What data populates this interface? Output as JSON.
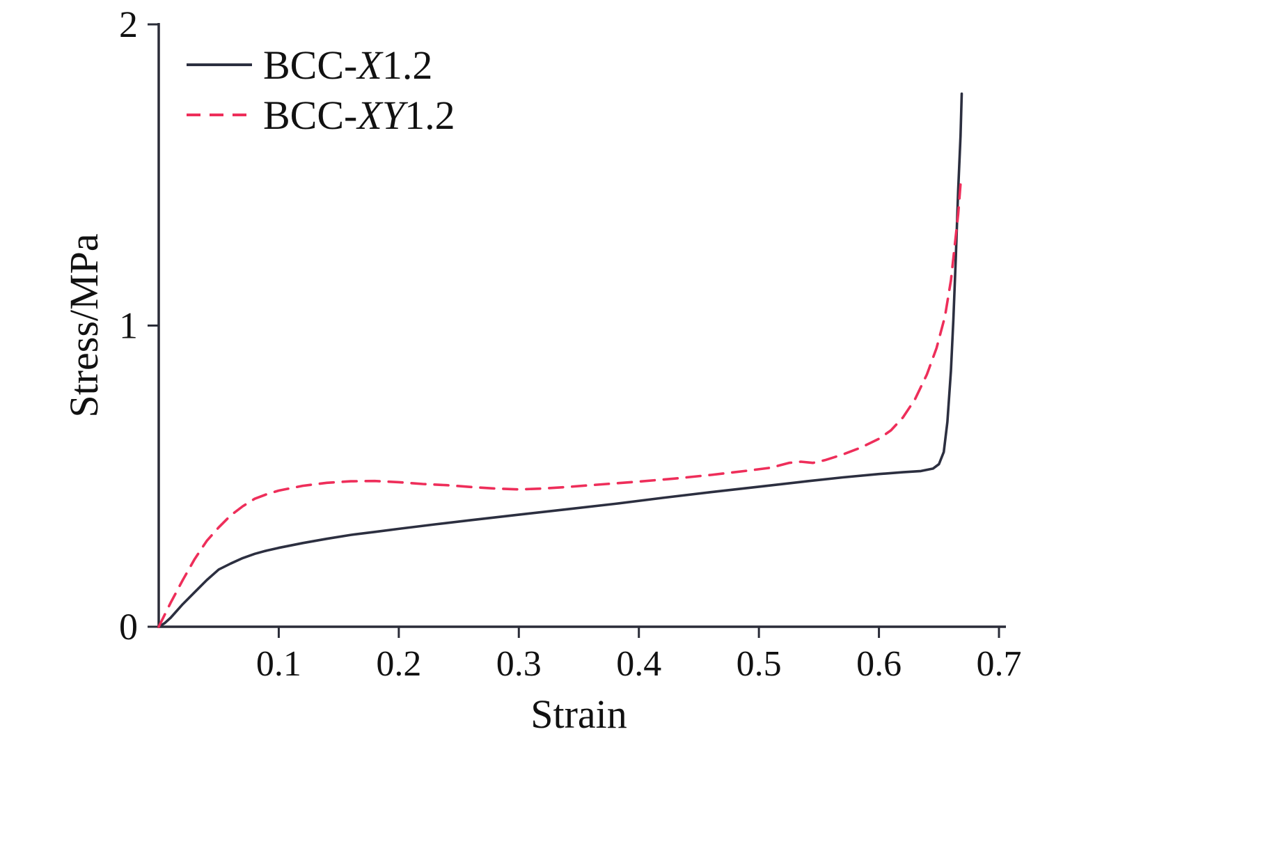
{
  "figure": {
    "kind": "stress-strain line chart",
    "background": "#ffffff"
  },
  "chart_data": {
    "type": "line",
    "title": "",
    "xlabel": "Strain",
    "ylabel": "Stress/MPa",
    "xlim": [
      0,
      0.7
    ],
    "ylim": [
      0,
      2
    ],
    "grid": false,
    "legend_position": "top-left",
    "axis_color": "#2a2c38",
    "text_color": "#111111",
    "x_ticks": [
      {
        "value": 0.1,
        "label": "0.1"
      },
      {
        "value": 0.2,
        "label": "0.2"
      },
      {
        "value": 0.3,
        "label": "0.3"
      },
      {
        "value": 0.4,
        "label": "0.4"
      },
      {
        "value": 0.5,
        "label": "0.5"
      },
      {
        "value": 0.6,
        "label": "0.6"
      },
      {
        "value": 0.7,
        "label": "0.7"
      }
    ],
    "y_ticks": [
      {
        "value": 0,
        "label": "0"
      },
      {
        "value": 1,
        "label": "1"
      },
      {
        "value": 2,
        "label": "2"
      }
    ],
    "series": [
      {
        "name": "BCC-X1.2",
        "color": "#2c2f40",
        "style": "solid",
        "points": [
          [
            0,
            0
          ],
          [
            0.005,
            0.012
          ],
          [
            0.01,
            0.03
          ],
          [
            0.02,
            0.075
          ],
          [
            0.03,
            0.115
          ],
          [
            0.04,
            0.155
          ],
          [
            0.05,
            0.19
          ],
          [
            0.06,
            0.21
          ],
          [
            0.07,
            0.228
          ],
          [
            0.08,
            0.242
          ],
          [
            0.09,
            0.253
          ],
          [
            0.1,
            0.262
          ],
          [
            0.12,
            0.278
          ],
          [
            0.14,
            0.292
          ],
          [
            0.16,
            0.305
          ],
          [
            0.18,
            0.315
          ],
          [
            0.2,
            0.325
          ],
          [
            0.23,
            0.34
          ],
          [
            0.26,
            0.354
          ],
          [
            0.3,
            0.372
          ],
          [
            0.34,
            0.39
          ],
          [
            0.38,
            0.408
          ],
          [
            0.42,
            0.428
          ],
          [
            0.46,
            0.447
          ],
          [
            0.5,
            0.465
          ],
          [
            0.54,
            0.483
          ],
          [
            0.57,
            0.496
          ],
          [
            0.6,
            0.507
          ],
          [
            0.62,
            0.513
          ],
          [
            0.635,
            0.517
          ],
          [
            0.645,
            0.525
          ],
          [
            0.65,
            0.54
          ],
          [
            0.654,
            0.58
          ],
          [
            0.657,
            0.68
          ],
          [
            0.66,
            0.85
          ],
          [
            0.662,
            1.02
          ],
          [
            0.664,
            1.22
          ],
          [
            0.666,
            1.45
          ],
          [
            0.668,
            1.63
          ],
          [
            0.669,
            1.77
          ]
        ]
      },
      {
        "name": "BCC-XY1.2",
        "color": "#ee2e5a",
        "style": "dashed",
        "points": [
          [
            0,
            0
          ],
          [
            0.005,
            0.04
          ],
          [
            0.01,
            0.08
          ],
          [
            0.02,
            0.155
          ],
          [
            0.03,
            0.225
          ],
          [
            0.04,
            0.285
          ],
          [
            0.05,
            0.33
          ],
          [
            0.06,
            0.37
          ],
          [
            0.07,
            0.4
          ],
          [
            0.08,
            0.425
          ],
          [
            0.09,
            0.44
          ],
          [
            0.1,
            0.452
          ],
          [
            0.12,
            0.468
          ],
          [
            0.14,
            0.478
          ],
          [
            0.16,
            0.483
          ],
          [
            0.18,
            0.484
          ],
          [
            0.2,
            0.48
          ],
          [
            0.22,
            0.474
          ],
          [
            0.24,
            0.47
          ],
          [
            0.26,
            0.464
          ],
          [
            0.28,
            0.459
          ],
          [
            0.3,
            0.456
          ],
          [
            0.32,
            0.459
          ],
          [
            0.34,
            0.464
          ],
          [
            0.36,
            0.47
          ],
          [
            0.38,
            0.476
          ],
          [
            0.4,
            0.482
          ],
          [
            0.43,
            0.492
          ],
          [
            0.46,
            0.504
          ],
          [
            0.49,
            0.518
          ],
          [
            0.51,
            0.528
          ],
          [
            0.525,
            0.544
          ],
          [
            0.535,
            0.548
          ],
          [
            0.545,
            0.544
          ],
          [
            0.555,
            0.553
          ],
          [
            0.57,
            0.572
          ],
          [
            0.585,
            0.595
          ],
          [
            0.6,
            0.624
          ],
          [
            0.61,
            0.652
          ],
          [
            0.62,
            0.695
          ],
          [
            0.63,
            0.755
          ],
          [
            0.64,
            0.838
          ],
          [
            0.648,
            0.925
          ],
          [
            0.655,
            1.03
          ],
          [
            0.66,
            1.15
          ],
          [
            0.663,
            1.26
          ],
          [
            0.666,
            1.37
          ],
          [
            0.668,
            1.47
          ]
        ]
      }
    ]
  }
}
